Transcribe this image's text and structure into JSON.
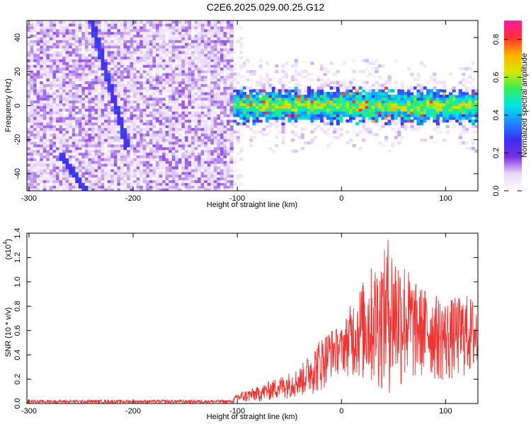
{
  "title": "C2E6.2025.029.00.25.G12",
  "chart_data": [
    {
      "type": "heatmap",
      "xlabel": "Height of straight line (km)",
      "ylabel": "Frequency (Hz)",
      "xlim": [
        -302,
        131
      ],
      "ylim": [
        -50,
        50
      ],
      "xticks": [
        -300,
        -200,
        -100,
        0,
        100
      ],
      "yticks": [
        -40,
        -20,
        0,
        20,
        40
      ],
      "colorbar": {
        "label": "Normalized spectral amplitude",
        "range": [
          0,
          0.9
        ],
        "ticks": [
          0.0,
          0.2,
          0.4,
          0.6,
          0.8
        ],
        "colors": [
          "#ffffff",
          "#e8d8f8",
          "#7a2ee0",
          "#3a2ff5",
          "#1f88ff",
          "#00e6e6",
          "#33ee55",
          "#d8e800",
          "#ffb000",
          "#ff3030",
          "#ff1aa0"
        ]
      },
      "features": {
        "noise_region_x": [
          -302,
          -105
        ],
        "signal_band_x": [
          -105,
          131
        ],
        "signal_band_center_hz": 0,
        "signal_band_halfwidth_hz": 8,
        "diagonal_trace": {
          "from": [
            -240,
            50
          ],
          "to": [
            -205,
            -25
          ]
        },
        "lower_trace": {
          "from": [
            -270,
            -28
          ],
          "to": [
            -245,
            -50
          ]
        }
      }
    },
    {
      "type": "area",
      "xlabel": "Height of straight line (km)",
      "ylabel": "SNR (10 * v/v)",
      "yscale_label": "(x10^4)",
      "xlim": [
        -302,
        131
      ],
      "ylim": [
        0,
        1.4
      ],
      "xticks": [
        -300,
        -200,
        -100,
        0,
        100
      ],
      "yticks": [
        0.0,
        0.2,
        0.4,
        0.6,
        0.8,
        1.0,
        1.2,
        1.4
      ],
      "color": "#ee3333",
      "envelope": {
        "x": [
          -302,
          -200,
          -105,
          -100,
          -80,
          -60,
          -40,
          -20,
          -10,
          0,
          10,
          20,
          30,
          40,
          45,
          50,
          60,
          70,
          80,
          100,
          120,
          131
        ],
        "upper": [
          0.03,
          0.03,
          0.03,
          0.09,
          0.14,
          0.22,
          0.3,
          0.55,
          0.62,
          0.62,
          0.85,
          1.0,
          1.15,
          1.22,
          1.4,
          1.3,
          1.2,
          1.0,
          0.95,
          0.85,
          0.9,
          0.85
        ],
        "lower": [
          0.0,
          0.0,
          0.0,
          0.0,
          0.01,
          0.03,
          0.05,
          0.08,
          0.2,
          0.25,
          0.2,
          0.15,
          0.1,
          0.08,
          0.05,
          0.05,
          0.1,
          0.15,
          0.2,
          0.15,
          0.2,
          0.2
        ]
      }
    }
  ]
}
